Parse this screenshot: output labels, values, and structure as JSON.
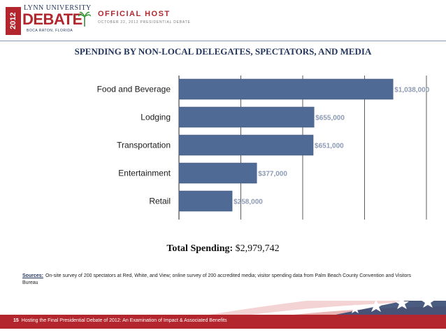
{
  "header": {
    "logo_year": "2012",
    "logo_top": "LYNN UNIVERSITY",
    "logo_main": "DEBATE",
    "logo_sub": "BOCA RATON, FLORIDA",
    "host_title": "OFFICIAL HOST",
    "host_subtitle": "OCTOBER 22, 2012 PRESIDENTIAL DEBATE"
  },
  "title": "SPENDING BY NON-LOCAL DELEGATES, SPECTATORS, AND MEDIA",
  "chart_data": {
    "type": "bar",
    "orientation": "horizontal",
    "categories": [
      "Food and Beverage",
      "Lodging",
      "Transportation",
      "Entertainment",
      "Retail"
    ],
    "values": [
      1038000,
      655000,
      651000,
      377000,
      258000
    ],
    "value_labels": [
      "$1,038,000",
      "$655,000",
      "$651,000",
      "$377,000",
      "$258,000"
    ],
    "xlim": [
      0,
      1200000
    ],
    "grid": true,
    "bar_color": "#4f6a94"
  },
  "total": {
    "label": "Total Spending:",
    "value": "$2,979,742"
  },
  "sources": {
    "label": "Sources:",
    "text": "On-site survey of 200 spectators at Red, White, and View; online survey of 200 accredited media; visitor spending data from Palm Beach County Convention and Visitors Bureau"
  },
  "footer": {
    "page": "15",
    "text": "Hosting the Final Presidential Debate of 2012: An Examination of Impact & Associated Benefits"
  }
}
